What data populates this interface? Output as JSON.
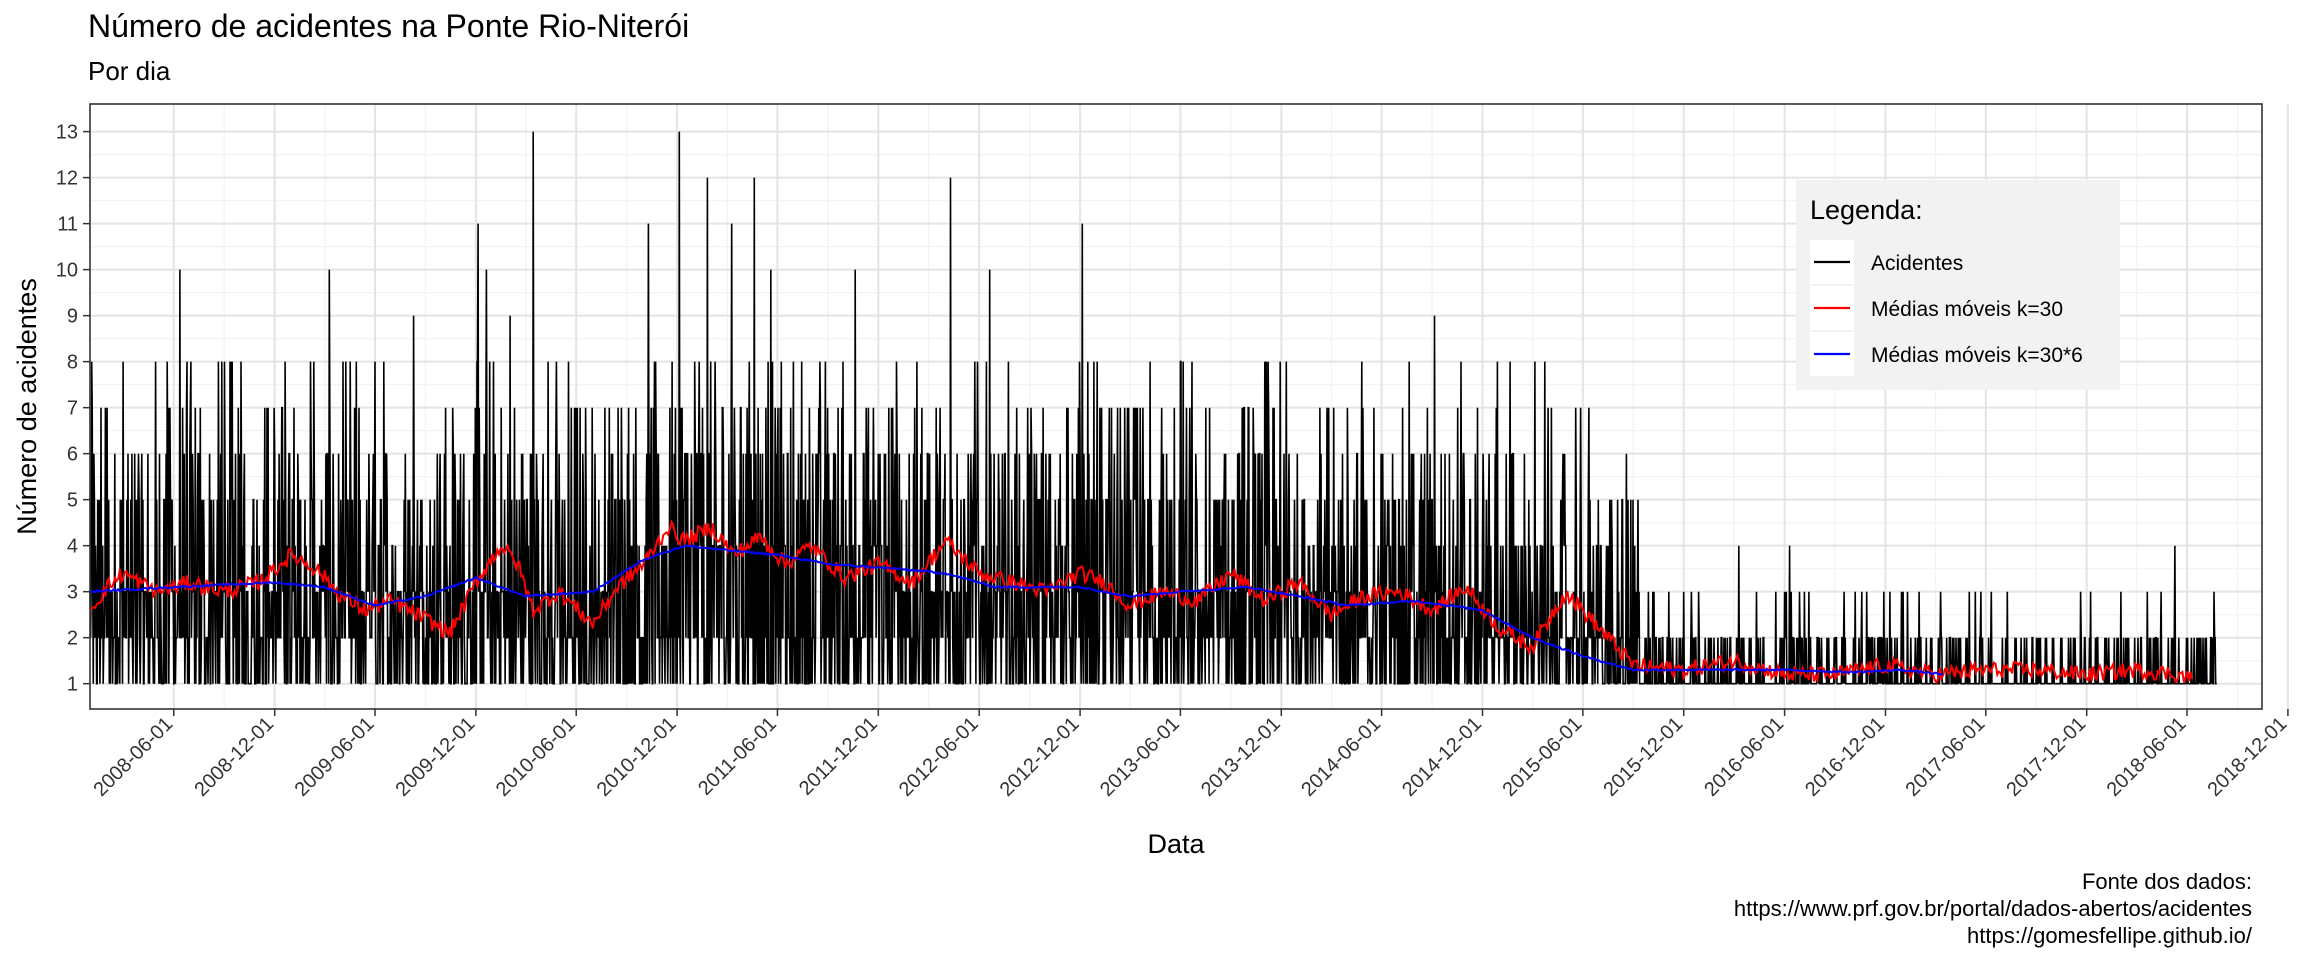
{
  "title": "Número de acidentes na Ponte Rio-Niterói",
  "subtitle": "Por dia",
  "caption": [
    "Fonte dos dados:",
    "https://www.prf.gov.br/portal/dados-abertos/acidentes",
    "https://gomesfellipe.github.io/"
  ],
  "chart_data": {
    "type": "line",
    "xlabel": "Data",
    "ylabel": "Número de acidentes",
    "x_range": [
      "2008-01-01",
      "2018-10-15"
    ],
    "ylim": [
      0.45,
      13.6
    ],
    "y_ticks": [
      1,
      2,
      3,
      4,
      5,
      6,
      7,
      8,
      9,
      10,
      11,
      12,
      13
    ],
    "x_ticks": [
      "2008-06-01",
      "2008-12-01",
      "2009-06-01",
      "2009-12-01",
      "2010-06-01",
      "2010-12-01",
      "2011-06-01",
      "2011-12-01",
      "2012-06-01",
      "2012-12-01",
      "2013-06-01",
      "2013-12-01",
      "2014-06-01",
      "2014-12-01",
      "2015-06-01",
      "2015-12-01",
      "2016-06-01",
      "2016-12-01",
      "2017-06-01",
      "2017-12-01",
      "2018-06-01",
      "2018-12-01"
    ],
    "grid": true,
    "legend": {
      "title": "Legenda:",
      "placement": "top-right",
      "entries": [
        {
          "label": "Acidentes",
          "color": "#000000"
        },
        {
          "label": "Médias móveis k=30",
          "color": "#ff0000"
        },
        {
          "label": "Médias móveis k=30*6",
          "color": "#0000ff"
        }
      ]
    },
    "series": [
      {
        "name": "Acidentes",
        "color": "#000000",
        "note": "daily counts; dense spikes approximated",
        "spikes": [
          {
            "date": "2008-01-05",
            "value": 7
          },
          {
            "date": "2008-03-01",
            "value": 8
          },
          {
            "date": "2008-05-20",
            "value": 8
          },
          {
            "date": "2008-06-12",
            "value": 10
          },
          {
            "date": "2008-06-25",
            "value": 8
          },
          {
            "date": "2008-09-01",
            "value": 8
          },
          {
            "date": "2008-12-20",
            "value": 8
          },
          {
            "date": "2009-02-10",
            "value": 8
          },
          {
            "date": "2009-03-10",
            "value": 10
          },
          {
            "date": "2009-08-10",
            "value": 9
          },
          {
            "date": "2009-12-05",
            "value": 11
          },
          {
            "date": "2009-12-20",
            "value": 10
          },
          {
            "date": "2010-02-01",
            "value": 9
          },
          {
            "date": "2010-03-15",
            "value": 13
          },
          {
            "date": "2010-10-10",
            "value": 11
          },
          {
            "date": "2010-12-05",
            "value": 13
          },
          {
            "date": "2011-01-25",
            "value": 12
          },
          {
            "date": "2011-03-10",
            "value": 11
          },
          {
            "date": "2011-04-20",
            "value": 12
          },
          {
            "date": "2011-05-20",
            "value": 10
          },
          {
            "date": "2011-10-20",
            "value": 10
          },
          {
            "date": "2012-04-10",
            "value": 12
          },
          {
            "date": "2012-06-20",
            "value": 10
          },
          {
            "date": "2012-12-05",
            "value": 11
          },
          {
            "date": "2013-06-01",
            "value": 8
          },
          {
            "date": "2013-12-10",
            "value": 8
          },
          {
            "date": "2014-09-05",
            "value": 9
          },
          {
            "date": "2015-01-20",
            "value": 8
          },
          {
            "date": "2015-07-20",
            "value": 5
          },
          {
            "date": "2016-03-10",
            "value": 4
          },
          {
            "date": "2016-06-10",
            "value": 4
          },
          {
            "date": "2017-01-10",
            "value": 3
          },
          {
            "date": "2017-07-10",
            "value": 3
          },
          {
            "date": "2018-05-10",
            "value": 4
          },
          {
            "date": "2018-07-20",
            "value": 3
          }
        ]
      },
      {
        "name": "Médias móveis k=30",
        "color": "#ff0000",
        "points": [
          [
            "2008-01-01",
            2.6
          ],
          [
            "2008-02-01",
            3.1
          ],
          [
            "2008-03-01",
            3.4
          ],
          [
            "2008-05-01",
            3.0
          ],
          [
            "2008-07-01",
            3.2
          ],
          [
            "2008-09-01",
            3.0
          ],
          [
            "2008-11-01",
            3.2
          ],
          [
            "2009-01-01",
            3.8
          ],
          [
            "2009-02-15",
            3.5
          ],
          [
            "2009-04-01",
            2.9
          ],
          [
            "2009-05-15",
            2.6
          ],
          [
            "2009-07-01",
            2.8
          ],
          [
            "2009-09-01",
            2.4
          ],
          [
            "2009-10-15",
            2.1
          ],
          [
            "2009-12-01",
            3.2
          ],
          [
            "2010-01-15",
            4.0
          ],
          [
            "2010-02-15",
            3.6
          ],
          [
            "2010-03-15",
            2.6
          ],
          [
            "2010-05-01",
            3.0
          ],
          [
            "2010-07-01",
            2.3
          ],
          [
            "2010-08-15",
            3.1
          ],
          [
            "2010-10-01",
            3.6
          ],
          [
            "2010-11-15",
            4.4
          ],
          [
            "2010-12-15",
            4.1
          ],
          [
            "2011-02-01",
            4.4
          ],
          [
            "2011-03-15",
            3.8
          ],
          [
            "2011-05-01",
            4.2
          ],
          [
            "2011-06-15",
            3.6
          ],
          [
            "2011-08-01",
            4.0
          ],
          [
            "2011-10-01",
            3.3
          ],
          [
            "2011-12-01",
            3.6
          ],
          [
            "2012-02-01",
            3.2
          ],
          [
            "2012-04-01",
            4.1
          ],
          [
            "2012-06-01",
            3.4
          ],
          [
            "2012-08-01",
            3.2
          ],
          [
            "2012-10-01",
            3.0
          ],
          [
            "2012-12-01",
            3.4
          ],
          [
            "2013-01-15",
            3.2
          ],
          [
            "2013-03-01",
            2.7
          ],
          [
            "2013-05-01",
            3.0
          ],
          [
            "2013-07-01",
            2.8
          ],
          [
            "2013-09-01",
            3.4
          ],
          [
            "2013-11-01",
            2.8
          ],
          [
            "2014-01-01",
            3.2
          ],
          [
            "2014-03-01",
            2.5
          ],
          [
            "2014-05-01",
            2.9
          ],
          [
            "2014-07-01",
            3.0
          ],
          [
            "2014-09-01",
            2.6
          ],
          [
            "2014-11-01",
            3.1
          ],
          [
            "2015-01-01",
            2.2
          ],
          [
            "2015-03-01",
            1.8
          ],
          [
            "2015-05-01",
            3.0
          ],
          [
            "2015-07-01",
            2.2
          ],
          [
            "2015-09-01",
            1.4
          ],
          [
            "2015-12-01",
            1.3
          ],
          [
            "2016-03-01",
            1.5
          ],
          [
            "2016-06-01",
            1.2
          ],
          [
            "2016-09-01",
            1.2
          ],
          [
            "2016-12-01",
            1.4
          ],
          [
            "2017-03-01",
            1.2
          ],
          [
            "2017-06-01",
            1.3
          ],
          [
            "2017-09-01",
            1.3
          ],
          [
            "2017-12-01",
            1.2
          ],
          [
            "2018-03-01",
            1.3
          ],
          [
            "2018-05-15",
            1.2
          ],
          [
            "2018-06-10",
            1.1
          ]
        ]
      },
      {
        "name": "Médias móveis k=30*6",
        "color": "#0000ff",
        "points": [
          [
            "2008-01-01",
            3.0
          ],
          [
            "2008-06-01",
            3.1
          ],
          [
            "2008-12-01",
            3.2
          ],
          [
            "2009-03-01",
            3.1
          ],
          [
            "2009-06-01",
            2.7
          ],
          [
            "2009-09-01",
            2.9
          ],
          [
            "2009-12-01",
            3.3
          ],
          [
            "2010-03-01",
            2.9
          ],
          [
            "2010-07-01",
            3.0
          ],
          [
            "2010-10-01",
            3.7
          ],
          [
            "2010-12-15",
            4.0
          ],
          [
            "2011-03-01",
            3.9
          ],
          [
            "2011-06-01",
            3.8
          ],
          [
            "2011-09-01",
            3.6
          ],
          [
            "2012-01-01",
            3.5
          ],
          [
            "2012-04-01",
            3.4
          ],
          [
            "2012-07-01",
            3.1
          ],
          [
            "2012-12-01",
            3.1
          ],
          [
            "2013-03-01",
            2.9
          ],
          [
            "2013-06-01",
            3.0
          ],
          [
            "2013-10-01",
            3.1
          ],
          [
            "2014-01-01",
            2.9
          ],
          [
            "2014-04-01",
            2.7
          ],
          [
            "2014-08-01",
            2.8
          ],
          [
            "2014-12-01",
            2.6
          ],
          [
            "2015-03-01",
            2.0
          ],
          [
            "2015-06-01",
            1.6
          ],
          [
            "2015-09-01",
            1.3
          ],
          [
            "2016-01-01",
            1.3
          ],
          [
            "2016-06-01",
            1.3
          ],
          [
            "2016-10-01",
            1.25
          ],
          [
            "2017-01-01",
            1.3
          ],
          [
            "2017-03-15",
            1.2
          ]
        ]
      }
    ]
  }
}
